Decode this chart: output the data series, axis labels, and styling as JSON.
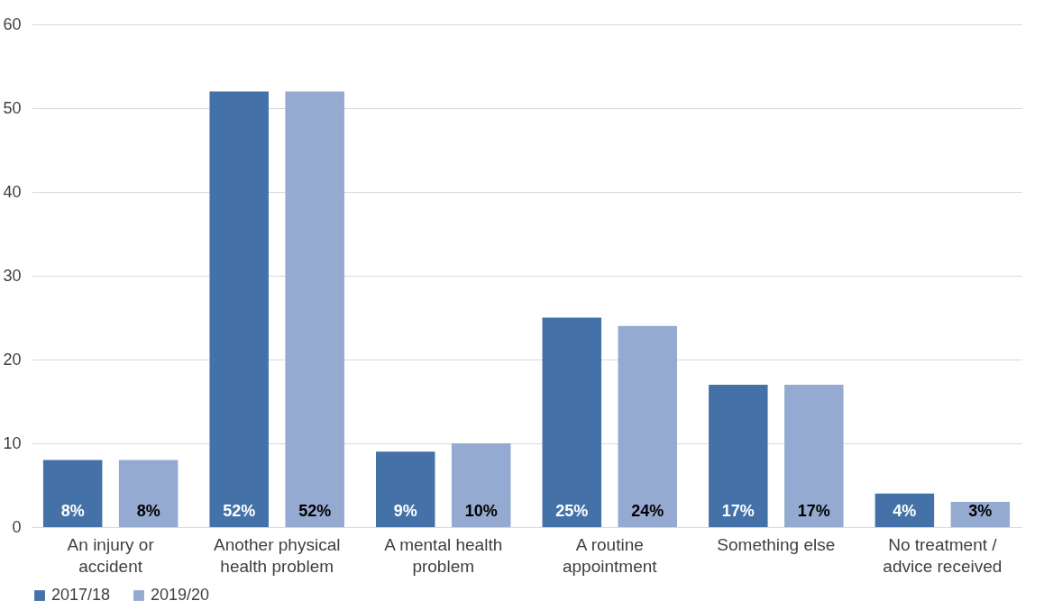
{
  "chart_data": {
    "type": "bar",
    "categories": [
      "An injury or accident",
      "Another physical health problem",
      "A mental health problem",
      "A routine appointment",
      "Something else",
      "No treatment / advice received"
    ],
    "series": [
      {
        "name": "2017/18",
        "color": "#4472a8",
        "values": [
          8,
          52,
          9,
          25,
          17,
          4
        ],
        "value_labels": [
          "8%",
          "52%",
          "9%",
          "25%",
          "17%",
          "4%"
        ]
      },
      {
        "name": "2019/20",
        "color": "#95aad0",
        "values": [
          8,
          52,
          10,
          24,
          17,
          3
        ],
        "value_labels": [
          "8%",
          "52%",
          "10%",
          "24%",
          "17%",
          "3%"
        ]
      }
    ],
    "ylim": [
      0,
      60
    ],
    "yticks": [
      0,
      10,
      20,
      30,
      40,
      50,
      60
    ],
    "grid": "y",
    "legend": "bottom"
  }
}
